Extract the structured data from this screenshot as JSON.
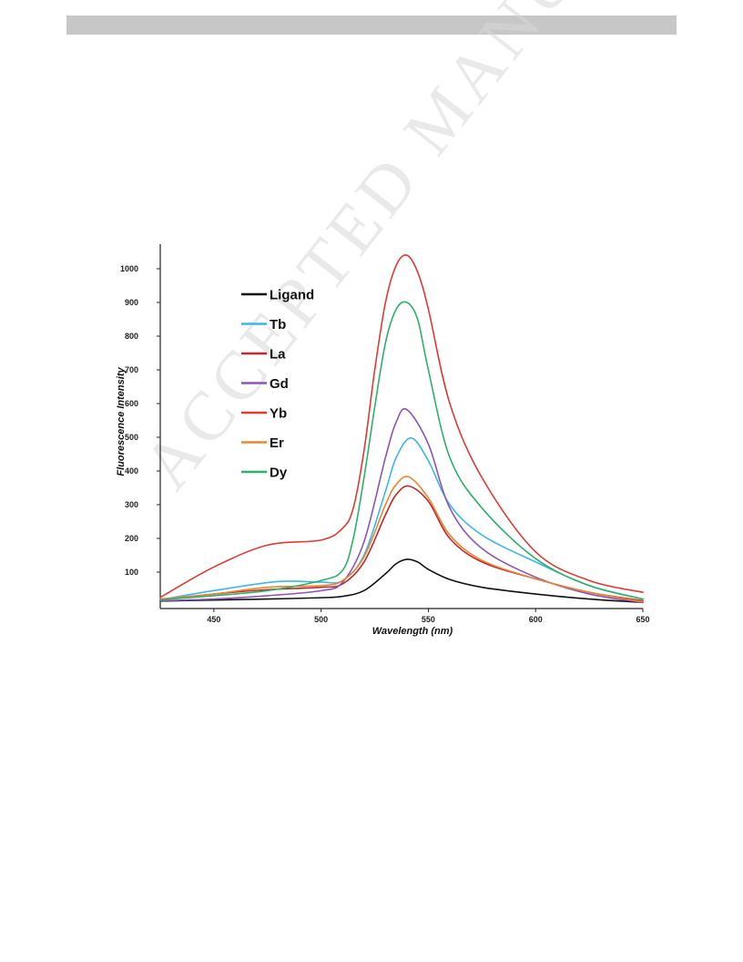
{
  "watermark": {
    "text": "ACCEPTED MANUSCRIPT"
  },
  "colors": {
    "header_bar": "#c7c7c7",
    "axis": "#222222"
  },
  "chart_data": {
    "type": "line",
    "xlabel": "Wavelength (nm)",
    "ylabel": "Fluorescence Intensity",
    "xlim": [
      425,
      650
    ],
    "ylim": [
      0,
      1050
    ],
    "x_ticks": [
      450,
      500,
      550,
      600,
      650
    ],
    "y_ticks": [
      100,
      200,
      300,
      400,
      500,
      600,
      700,
      800,
      900,
      1000
    ],
    "grid": false,
    "legend_position": "top-left",
    "series": [
      {
        "name": "Ligand",
        "color": "#111111",
        "x": [
          425,
          450,
          475,
          500,
          510,
          520,
          530,
          535,
          540,
          545,
          550,
          560,
          575,
          600,
          625,
          650
        ],
        "y": [
          14,
          17,
          20,
          24,
          28,
          45,
          95,
          125,
          138,
          130,
          108,
          78,
          55,
          35,
          20,
          10
        ]
      },
      {
        "name": "Tb",
        "color": "#3ab8e6",
        "x": [
          425,
          450,
          480,
          500,
          510,
          520,
          530,
          535,
          542,
          550,
          560,
          575,
          600,
          625,
          650
        ],
        "y": [
          18,
          45,
          72,
          70,
          75,
          150,
          340,
          440,
          498,
          430,
          300,
          210,
          130,
          60,
          20
        ]
      },
      {
        "name": "La",
        "color": "#c0282c",
        "x": [
          425,
          450,
          475,
          500,
          510,
          520,
          530,
          535,
          541,
          550,
          560,
          575,
          600,
          625,
          650
        ],
        "y": [
          18,
          35,
          48,
          55,
          65,
          130,
          270,
          330,
          355,
          310,
          200,
          130,
          80,
          40,
          15
        ]
      },
      {
        "name": "Gd",
        "color": "#8b55b8",
        "x": [
          425,
          450,
          475,
          500,
          510,
          520,
          530,
          535,
          540,
          550,
          560,
          575,
          600,
          625,
          650
        ],
        "y": [
          15,
          20,
          30,
          45,
          70,
          190,
          440,
          545,
          582,
          480,
          290,
          170,
          85,
          35,
          10
        ]
      },
      {
        "name": "Yb",
        "color": "#e03a35",
        "x": [
          425,
          450,
          475,
          500,
          510,
          515,
          520,
          525,
          530,
          535,
          540,
          545,
          550,
          560,
          575,
          600,
          625,
          650
        ],
        "y": [
          25,
          115,
          180,
          195,
          230,
          290,
          460,
          700,
          900,
          1010,
          1040,
          990,
          880,
          600,
          380,
          160,
          75,
          40
        ]
      },
      {
        "name": "Er",
        "color": "#e88632",
        "x": [
          425,
          450,
          475,
          500,
          510,
          520,
          530,
          535,
          541,
          550,
          560,
          575,
          600,
          625,
          650
        ],
        "y": [
          20,
          35,
          55,
          60,
          75,
          145,
          300,
          360,
          382,
          320,
          210,
          135,
          80,
          40,
          12
        ]
      },
      {
        "name": "Dy",
        "color": "#2eb06a",
        "x": [
          425,
          450,
          475,
          500,
          510,
          515,
          520,
          525,
          530,
          535,
          540,
          545,
          550,
          560,
          575,
          600,
          625,
          650
        ],
        "y": [
          18,
          30,
          45,
          75,
          105,
          200,
          380,
          590,
          780,
          880,
          900,
          850,
          700,
          440,
          290,
          140,
          60,
          20
        ]
      }
    ]
  }
}
